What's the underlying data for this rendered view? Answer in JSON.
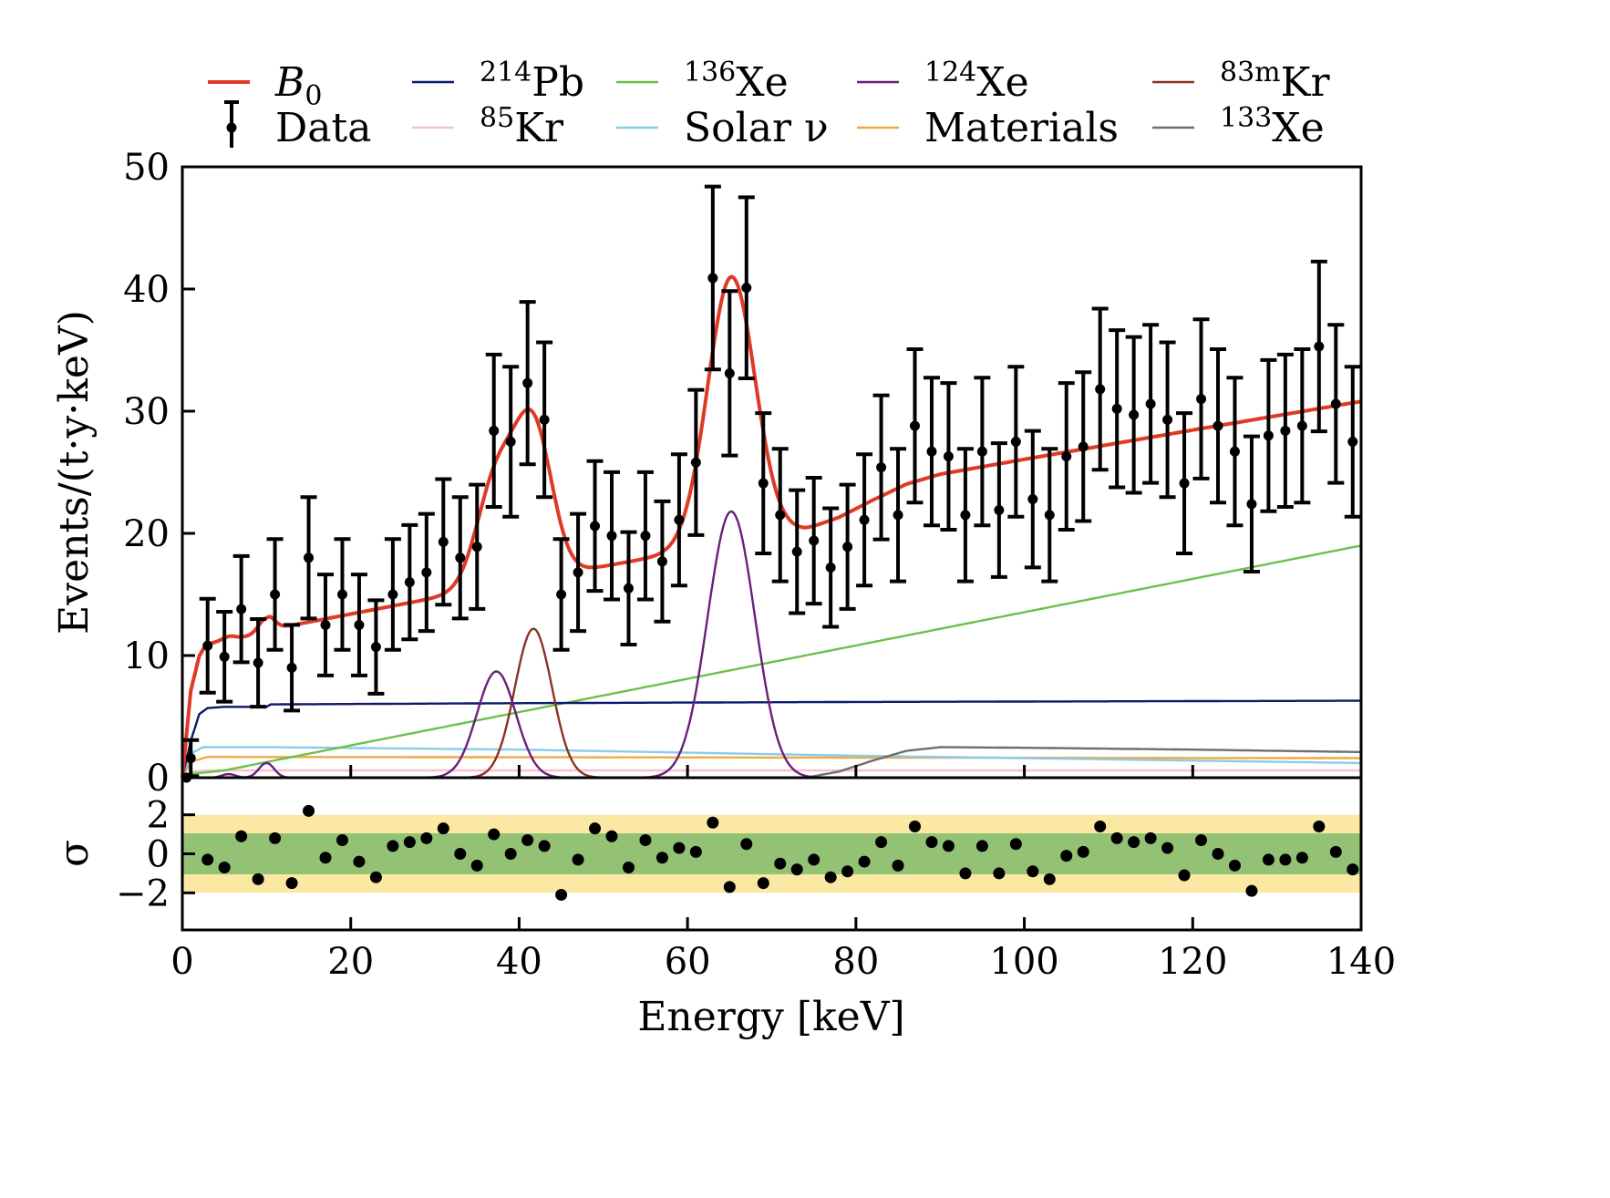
{
  "chart_data": [
    {
      "panel": "main",
      "type": "line",
      "title": "",
      "xlabel": "Energy [keV]",
      "ylabel": "Events/(t·y·keV)",
      "xlim": [
        0,
        140
      ],
      "ylim": [
        0,
        50
      ],
      "xticks": [
        0,
        20,
        40,
        60,
        80,
        100,
        120,
        140
      ],
      "yticks": [
        0,
        10,
        20,
        30,
        40,
        50
      ],
      "legend_position": "top",
      "legend": [
        {
          "key": "B0",
          "label": "B",
          "sub": "0",
          "italic": true,
          "color": "#e03a26",
          "kind": "line"
        },
        {
          "key": "data",
          "label": "Data",
          "color": "#000000",
          "kind": "errorbar"
        },
        {
          "key": "pb214",
          "sup": "214",
          "label": "Pb",
          "color": "#0c1a6b",
          "kind": "line"
        },
        {
          "key": "kr85",
          "sup": "85",
          "label": "Kr",
          "color": "#f4c3cd",
          "kind": "line"
        },
        {
          "key": "xe136",
          "sup": "136",
          "label": "Xe",
          "color": "#6cc04a",
          "kind": "line"
        },
        {
          "key": "solar",
          "label": "Solar ν",
          "color": "#8ccbea",
          "kind": "line"
        },
        {
          "key": "xe124",
          "sup": "124",
          "label": "Xe",
          "color": "#6a1f7a",
          "kind": "line"
        },
        {
          "key": "materials",
          "label": "Materials",
          "color": "#eeaa44",
          "kind": "line"
        },
        {
          "key": "kr83m",
          "sup": "83m",
          "label": "Kr",
          "color": "#8a3324",
          "kind": "line"
        },
        {
          "key": "xe133",
          "sup": "133",
          "label": "Xe",
          "color": "#6e6e6e",
          "kind": "line"
        }
      ],
      "data_points": {
        "x": [
          1,
          3,
          5,
          7,
          9,
          11,
          13,
          15,
          17,
          19,
          21,
          23,
          25,
          27,
          29,
          31,
          33,
          35,
          37,
          39,
          41,
          43,
          45,
          47,
          49,
          51,
          53,
          55,
          57,
          59,
          61,
          63,
          65,
          67,
          69,
          71,
          73,
          75,
          77,
          79,
          81,
          83,
          85,
          87,
          89,
          91,
          93,
          95,
          97,
          99,
          101,
          103,
          105,
          107,
          109,
          111,
          113,
          115,
          117,
          119,
          121,
          123,
          125,
          127,
          129,
          131,
          133,
          135,
          137,
          139
        ],
        "y": [
          1.6,
          10.8,
          9.9,
          13.8,
          9.4,
          15.0,
          9.0,
          18.0,
          12.5,
          15.0,
          12.5,
          10.7,
          15.0,
          16.0,
          16.8,
          19.3,
          18.0,
          18.9,
          28.4,
          27.5,
          32.3,
          29.3,
          15.0,
          16.8,
          20.6,
          19.8,
          15.5,
          19.8,
          17.7,
          21.1,
          25.8,
          40.9,
          33.1,
          40.1,
          24.1,
          21.5,
          18.5,
          19.4,
          17.2,
          18.9,
          21.1,
          25.4,
          21.5,
          28.8,
          26.7,
          26.3,
          21.5,
          26.7,
          21.9,
          27.5,
          22.8,
          21.5,
          26.3,
          27.1,
          31.8,
          30.2,
          29.7,
          30.6,
          29.3,
          24.1,
          31.0,
          28.8,
          26.7,
          22.4,
          28.0,
          28.4,
          28.8,
          35.3,
          30.6,
          27.5
        ]
      },
      "components": {
        "pb214": {
          "description": "rises quickly to ~5.8 by 3 keV, then flat ~6.0–6.2 up to 140 keV",
          "x": [
            0,
            1,
            2,
            3,
            5,
            10,
            10.5,
            40,
            80,
            140
          ],
          "y": [
            0,
            3.0,
            5.2,
            5.7,
            5.8,
            5.8,
            6.0,
            6.1,
            6.2,
            6.3
          ]
        },
        "kr85": {
          "description": "flat ~0.6",
          "x": [
            0,
            1,
            3,
            140
          ],
          "y": [
            0,
            0.5,
            0.6,
            0.6
          ]
        },
        "xe136": {
          "description": "linear rise",
          "x": [
            0,
            1,
            5,
            140
          ],
          "y": [
            0,
            0.3,
            0.6,
            19.0
          ]
        },
        "solar": {
          "description": "~2.6 then decreasing slowly",
          "x": [
            0,
            1,
            2.5,
            10,
            40,
            80,
            140
          ],
          "y": [
            0,
            2.0,
            2.5,
            2.5,
            2.3,
            1.8,
            1.2
          ]
        },
        "materials": {
          "description": "~1.7 flat",
          "x": [
            0,
            1,
            3,
            140
          ],
          "y": [
            0,
            1.3,
            1.7,
            1.6
          ]
        },
        "xe124": {
          "peaks": [
            {
              "mu": 37.3,
              "sigma": 2.3,
              "amp": 8.7
            },
            {
              "mu": 65.2,
              "sigma": 2.8,
              "amp": 21.8
            },
            {
              "mu": 5.5,
              "sigma": 0.8,
              "amp": 0.3
            },
            {
              "mu": 10.0,
              "sigma": 0.9,
              "amp": 1.2
            }
          ]
        },
        "kr83m": {
          "peaks": [
            {
              "mu": 41.7,
              "sigma": 2.2,
              "amp": 12.2
            }
          ]
        },
        "xe133": {
          "description": "step from ~75 keV to ~2.5 plateau, slowly decreasing",
          "x": [
            74,
            78,
            82,
            86,
            90,
            100,
            120,
            140
          ],
          "y": [
            0,
            0.5,
            1.4,
            2.2,
            2.5,
            2.45,
            2.3,
            2.1
          ]
        },
        "B0": {
          "description": "total background model (sum of components)"
        }
      }
    },
    {
      "panel": "residual",
      "type": "scatter",
      "ylabel": "σ",
      "xlim": [
        0,
        140
      ],
      "ylim": [
        -3.9,
        3.9
      ],
      "yticks": [
        -2,
        0,
        2
      ],
      "bands": [
        {
          "range": [
            -2,
            2
          ],
          "color": "#fbe9a3"
        },
        {
          "range": [
            -1.05,
            1.05
          ],
          "color": "#93c274"
        }
      ],
      "x": [
        3,
        5,
        7,
        9,
        11,
        13,
        15,
        17,
        19,
        21,
        23,
        25,
        27,
        29,
        31,
        33,
        35,
        37,
        39,
        41,
        43,
        45,
        47,
        49,
        51,
        53,
        55,
        57,
        59,
        61,
        63,
        65,
        67,
        69,
        71,
        73,
        75,
        77,
        79,
        81,
        83,
        85,
        87,
        89,
        91,
        93,
        95,
        97,
        99,
        101,
        103,
        105,
        107,
        109,
        111,
        113,
        115,
        117,
        119,
        121,
        123,
        125,
        127,
        129,
        131,
        133,
        135,
        137,
        139
      ],
      "y": [
        -0.3,
        -0.7,
        0.9,
        -1.3,
        0.8,
        -1.5,
        2.2,
        -0.2,
        0.7,
        -0.4,
        -1.2,
        0.4,
        0.6,
        0.8,
        1.3,
        0.0,
        -0.6,
        1.0,
        0.0,
        0.7,
        0.4,
        -2.1,
        -0.3,
        1.3,
        0.9,
        -0.7,
        0.7,
        -0.2,
        0.3,
        0.1,
        1.6,
        -1.7,
        0.5,
        -1.5,
        -0.5,
        -0.8,
        -0.3,
        -1.2,
        -0.9,
        -0.4,
        0.6,
        -0.6,
        1.4,
        0.6,
        0.4,
        -1.0,
        0.4,
        -1.0,
        0.5,
        -0.9,
        -1.3,
        -0.1,
        0.1,
        1.4,
        0.8,
        0.6,
        0.8,
        0.3,
        -1.1,
        0.7,
        0.0,
        -0.6,
        -1.9,
        -0.3,
        -0.3,
        -0.2,
        1.4,
        0.1,
        -0.8
      ]
    }
  ],
  "labels": {
    "xlabel": "Energy [keV]",
    "ylabel": "Events/(t·y·keV)",
    "residual_ylabel": "σ",
    "xticks": [
      "0",
      "20",
      "40",
      "60",
      "80",
      "100",
      "120",
      "140"
    ],
    "yticks": [
      "0",
      "10",
      "20",
      "30",
      "40",
      "50"
    ],
    "residual_yticks": [
      "−2",
      "0",
      "2"
    ]
  }
}
